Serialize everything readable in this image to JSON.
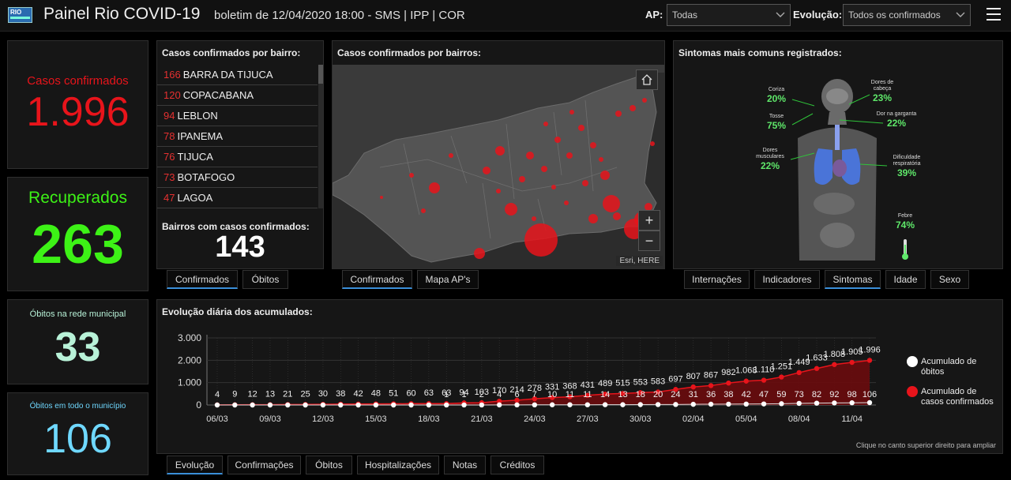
{
  "header": {
    "logo_text": "RIO",
    "title": "Painel Rio COVID-19",
    "subtitle": "boletim de 12/04/2020 18:00 - SMS | IPP | COR",
    "ap_label": "AP:",
    "ap_value": "Todas",
    "evolucao_label": "Evolução:",
    "evolucao_value": "Todos os confirmados"
  },
  "kpis": {
    "confirmados": {
      "label": "Casos confirmados",
      "value": "1.996",
      "color": "#e8141b"
    },
    "recuperados": {
      "label": "Recuperados",
      "value": "263",
      "color": "#3df216"
    },
    "obitos_rede": {
      "label": "Óbitos na rede municipal",
      "value": "33",
      "color": "#b8f2d8"
    },
    "obitos_municipio": {
      "label": "Óbitos em todo o município",
      "value": "106",
      "color": "#6fd8ff"
    }
  },
  "bairros": {
    "title": "Casos confirmados por bairro:",
    "rows": [
      {
        "n": "166",
        "name": "BARRA DA TIJUCA"
      },
      {
        "n": "120",
        "name": "COPACABANA"
      },
      {
        "n": "94",
        "name": "LEBLON"
      },
      {
        "n": "78",
        "name": "IPANEMA"
      },
      {
        "n": "76",
        "name": "TIJUCA"
      },
      {
        "n": "73",
        "name": "BOTAFOGO"
      },
      {
        "n": "47",
        "name": "LAGOA"
      }
    ],
    "count_label": "Bairros com casos confirmados:",
    "count_value": "143",
    "tabs": [
      "Confirmados",
      "Óbitos"
    ]
  },
  "map": {
    "title": "Casos confirmados por bairros:",
    "attribution": "Esri, HERE",
    "zoom_in": "+",
    "zoom_out": "−",
    "tabs": [
      "Confirmados",
      "Mapa AP's"
    ]
  },
  "sintomas": {
    "title": "Sintomas mais comuns registrados:",
    "items": [
      {
        "label": "Coriza",
        "pct": "20%"
      },
      {
        "label": "Dores de cabeça",
        "pct": "23%"
      },
      {
        "label": "Tosse",
        "pct": "75%"
      },
      {
        "label": "Dor na garganta",
        "pct": "22%"
      },
      {
        "label": "Dores musculares",
        "pct": "22%"
      },
      {
        "label": "Dificuldade respiratória",
        "pct": "39%"
      },
      {
        "label": "Febre",
        "pct": "74%"
      }
    ],
    "tabs": [
      "Internações",
      "Indicadores",
      "Sintomas",
      "Idade",
      "Sexo"
    ]
  },
  "evolucao": {
    "title": "Evolução diária dos acumulados:",
    "hint": "Clique no canto superior direito para ampliar",
    "legend": [
      {
        "name": "Acumulado de óbitos",
        "color": "#ffffff"
      },
      {
        "name": "Acumulado de casos confirmados",
        "color": "#e8141b"
      }
    ],
    "tabs": [
      "Evolução",
      "Confirmações",
      "Óbitos",
      "Hospitalizações",
      "Notas",
      "Créditos"
    ]
  },
  "chart_data": {
    "type": "line",
    "title": "Evolução diária dos acumulados:",
    "x": [
      "06/03",
      "07/03",
      "08/03",
      "09/03",
      "10/03",
      "11/03",
      "12/03",
      "13/03",
      "14/03",
      "15/03",
      "16/03",
      "17/03",
      "18/03",
      "19/03",
      "20/03",
      "21/03",
      "22/03",
      "23/03",
      "24/03",
      "25/03",
      "26/03",
      "27/03",
      "28/03",
      "29/03",
      "30/03",
      "31/03",
      "01/04",
      "02/04",
      "03/04",
      "04/04",
      "05/04",
      "06/04",
      "07/04",
      "08/04",
      "09/04",
      "10/04",
      "11/04",
      "12/04"
    ],
    "x_tick_labels": [
      "06/03",
      "09/03",
      "12/03",
      "15/03",
      "18/03",
      "21/03",
      "24/03",
      "27/03",
      "30/03",
      "02/04",
      "05/04",
      "08/04",
      "11/04"
    ],
    "yticks": [
      "0",
      "1.000",
      "2.000",
      "3.000"
    ],
    "ylim": [
      0,
      3000
    ],
    "series": [
      {
        "name": "Acumulado de casos confirmados",
        "color": "#e8141b",
        "values": [
          4,
          9,
          12,
          13,
          21,
          25,
          30,
          38,
          42,
          48,
          51,
          60,
          63,
          63,
          94,
          103,
          170,
          214,
          278,
          331,
          368,
          431,
          489,
          515,
          553,
          583,
          697,
          807,
          867,
          982,
          1068,
          1110,
          1251,
          1449,
          1633,
          1808,
          1905,
          1996
        ],
        "labels": [
          "4",
          "9",
          "12",
          "13",
          "21",
          "25",
          "30",
          "38",
          "42",
          "48",
          "51",
          "60",
          "63",
          "63",
          "94",
          "103",
          "170",
          "214",
          "278",
          "331",
          "368",
          "431",
          "489",
          "515",
          "553",
          "583",
          "697",
          "807",
          "867",
          "982",
          "1.068",
          "1.110",
          "1.251",
          "1.449",
          "1.633",
          "1.808",
          "1.905",
          "1.996"
        ]
      },
      {
        "name": "Acumulado de óbitos",
        "color": "#ffffff",
        "values": [
          0,
          0,
          0,
          0,
          0,
          0,
          0,
          0,
          0,
          0,
          0,
          0,
          0,
          1,
          1,
          2,
          4,
          6,
          7,
          10,
          11,
          11,
          14,
          13,
          18,
          20,
          24,
          31,
          36,
          38,
          42,
          47,
          59,
          73,
          82,
          92,
          98,
          106
        ],
        "labels": [
          "",
          "",
          "",
          "",
          "",
          "",
          "",
          "",
          "",
          "",
          "",
          "",
          "",
          "1",
          "1",
          "2",
          "4",
          "6",
          "7",
          "10",
          "11",
          "11",
          "14",
          "13",
          "18",
          "20",
          "24",
          "31",
          "36",
          "38",
          "42",
          "47",
          "59",
          "73",
          "82",
          "92",
          "98",
          "106"
        ]
      }
    ]
  }
}
